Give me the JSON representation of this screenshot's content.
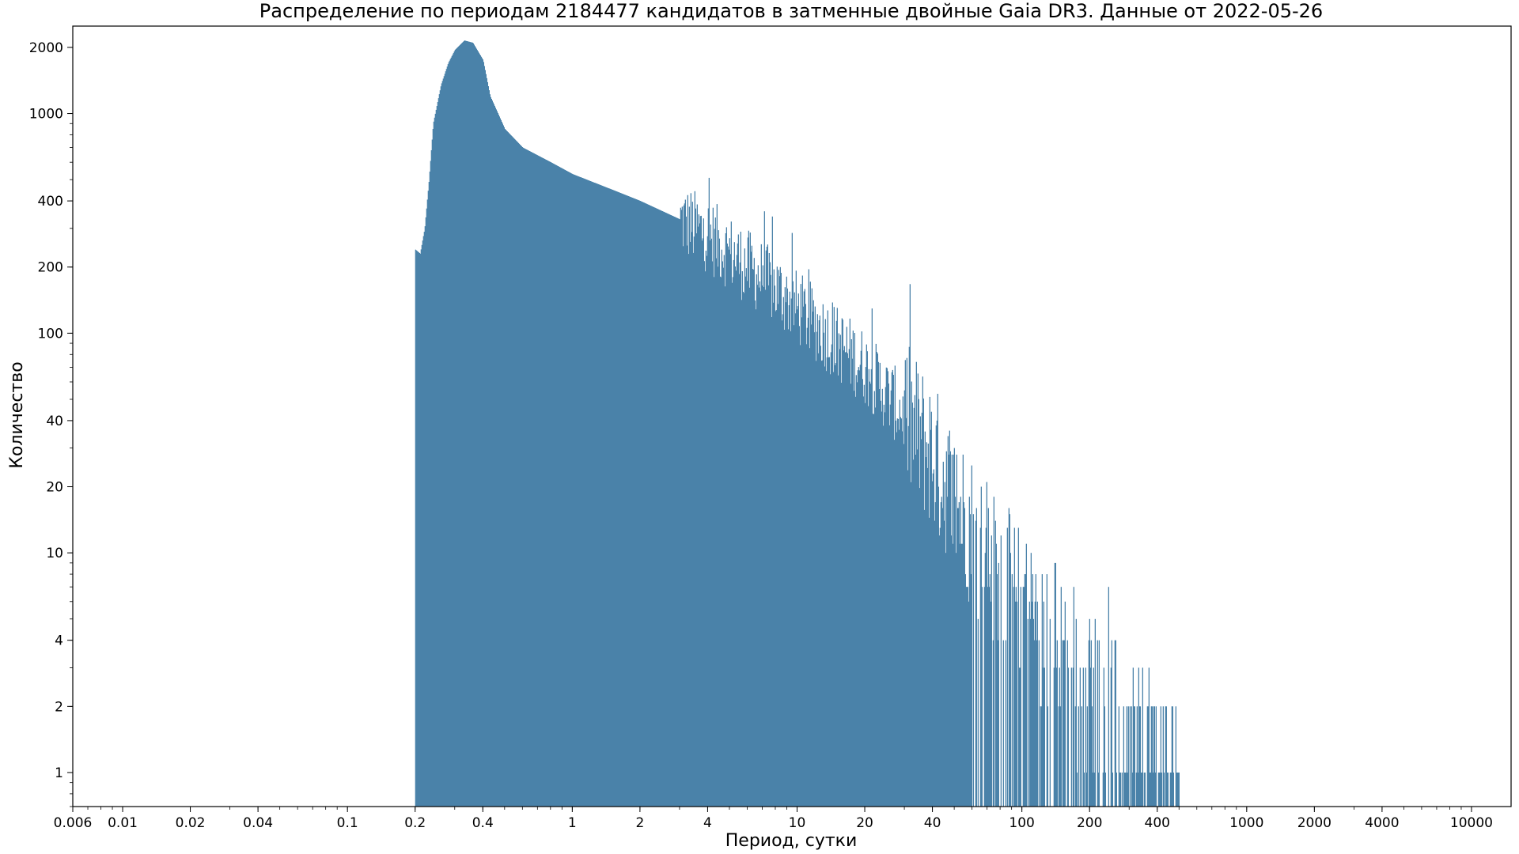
{
  "chart_data": {
    "type": "bar",
    "title": "Распределение по периодам 2184477 кандидатов в затменные двойные Gaia DR3. Данные от 2022-05-26",
    "xlabel": "Период, сутки",
    "ylabel": "Количество",
    "xscale": "log",
    "yscale": "log",
    "xlim": [
      0.006,
      15000
    ],
    "ylim": [
      0.7,
      2500
    ],
    "grid": false,
    "legend": "none",
    "bar_color": "#4a82a9",
    "x_ticks": [
      0.006,
      0.01,
      0.02,
      0.04,
      0.1,
      0.2,
      0.4,
      1,
      2,
      4,
      10,
      20,
      40,
      100,
      200,
      400,
      1000,
      2000,
      4000,
      10000
    ],
    "x_tick_labels": [
      "0.006",
      "0.01",
      "0.02",
      "0.04",
      "0.1",
      "0.2",
      "0.4",
      "1",
      "2",
      "4",
      "10",
      "20",
      "40",
      "100",
      "200",
      "400",
      "1000",
      "2000",
      "4000",
      "10000"
    ],
    "y_ticks": [
      1,
      2,
      4,
      10,
      20,
      40,
      100,
      200,
      400,
      1000,
      2000
    ],
    "y_tick_labels": [
      "1",
      "2",
      "4",
      "10",
      "20",
      "40",
      "100",
      "200",
      "400",
      "1000",
      "2000"
    ],
    "envelope": {
      "period": [
        0.2,
        0.21,
        0.22,
        0.23,
        0.24,
        0.26,
        0.28,
        0.3,
        0.33,
        0.36,
        0.4,
        0.43,
        0.5,
        0.6,
        0.8,
        1,
        1.5,
        2,
        3,
        4,
        6,
        8,
        10,
        15,
        20,
        30,
        40,
        50,
        60,
        80,
        100,
        150,
        200,
        300,
        500
      ],
      "count": [
        240,
        230,
        300,
        500,
        900,
        1350,
        1700,
        1950,
        2150,
        2100,
        1750,
        1200,
        850,
        700,
        600,
        530,
        450,
        400,
        330,
        280,
        200,
        160,
        130,
        90,
        70,
        42,
        28,
        17,
        13,
        8,
        6,
        4,
        2.5,
        1.5,
        1
      ]
    }
  }
}
